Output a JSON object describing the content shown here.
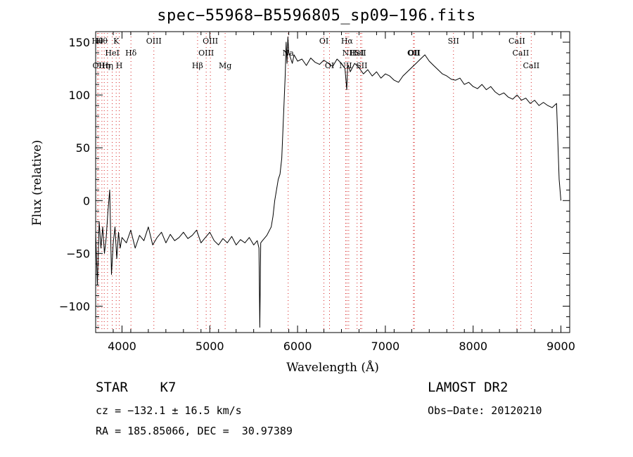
{
  "chart_data": {
    "type": "line",
    "title": "spec−55968−B5596805_sp09−196.fits",
    "xlabel": "Wavelength (Å)",
    "ylabel": "Flux (relative)",
    "xlim": [
      3700,
      9100
    ],
    "ylim": [
      -125,
      160
    ],
    "xticks": [
      4000,
      5000,
      6000,
      7000,
      8000,
      9000
    ],
    "yticks": [
      -100,
      -50,
      0,
      50,
      100,
      150
    ],
    "ytick_labels": [
      "−100",
      "−50",
      "0",
      "50",
      "100",
      "150"
    ],
    "grid": false,
    "series": [
      {
        "x": [
          3700,
          3720,
          3740,
          3760,
          3780,
          3800,
          3820,
          3840,
          3860,
          3880,
          3900,
          3920,
          3940,
          3960,
          3980,
          4000,
          4050,
          4100,
          4150,
          4200,
          4250,
          4300,
          4350,
          4400,
          4450,
          4500,
          4550,
          4600,
          4650,
          4700,
          4750,
          4800,
          4850,
          4900,
          4950,
          5000,
          5050,
          5100,
          5150,
          5200,
          5250,
          5300,
          5350,
          5400,
          5450,
          5500,
          5540,
          5560,
          5570,
          5580,
          5600,
          5650,
          5700,
          5720,
          5740,
          5760,
          5780,
          5800,
          5820,
          5840,
          5860,
          5870,
          5880,
          5890,
          5900,
          5920,
          5940,
          5960,
          6000,
          6050,
          6100,
          6150,
          6200,
          6250,
          6300,
          6350,
          6400,
          6450,
          6500,
          6540,
          6560,
          6570,
          6580,
          6600,
          6650,
          6700,
          6750,
          6800,
          6850,
          6900,
          6950,
          7000,
          7050,
          7100,
          7150,
          7200,
          7250,
          7300,
          7350,
          7400,
          7450,
          7500,
          7550,
          7600,
          7650,
          7700,
          7750,
          7800,
          7850,
          7900,
          7950,
          8000,
          8050,
          8100,
          8150,
          8200,
          8250,
          8300,
          8350,
          8400,
          8450,
          8500,
          8550,
          8600,
          8650,
          8700,
          8750,
          8800,
          8850,
          8900,
          8950,
          8980,
          9000
        ],
        "y": [
          -30,
          -80,
          -20,
          -45,
          -25,
          -50,
          -35,
          -10,
          10,
          -70,
          -40,
          -25,
          -55,
          -30,
          -45,
          -35,
          -40,
          -28,
          -45,
          -33,
          -38,
          -25,
          -42,
          -35,
          -30,
          -40,
          -32,
          -38,
          -35,
          -30,
          -36,
          -33,
          -28,
          -40,
          -35,
          -30,
          -38,
          -42,
          -36,
          -40,
          -34,
          -42,
          -37,
          -40,
          -35,
          -42,
          -38,
          -45,
          -120,
          -40,
          -38,
          -33,
          -25,
          -15,
          0,
          10,
          20,
          25,
          40,
          80,
          120,
          150,
          130,
          155,
          140,
          135,
          130,
          138,
          132,
          134,
          128,
          135,
          131,
          129,
          133,
          130,
          127,
          134,
          130,
          125,
          105,
          126,
          128,
          122,
          130,
          126,
          120,
          124,
          118,
          122,
          116,
          120,
          118,
          114,
          112,
          118,
          122,
          126,
          130,
          134,
          138,
          132,
          128,
          124,
          120,
          118,
          115,
          114,
          116,
          110,
          112,
          108,
          106,
          110,
          105,
          108,
          103,
          100,
          102,
          98,
          96,
          100,
          95,
          97,
          92,
          95,
          90,
          93,
          90,
          88,
          92,
          20,
          0
        ]
      }
    ],
    "lines": [
      {
        "wl": 3720,
        "label": "Hθ",
        "row": 1
      },
      {
        "wl": 3735,
        "label": "OII",
        "row": 3
      },
      {
        "wl": 3771,
        "label": "Hθ",
        "row": 1
      },
      {
        "wl": 3798,
        "label": "Hη",
        "row": 3
      },
      {
        "wl": 3835,
        "label": "Hη",
        "row": 3
      },
      {
        "wl": 3889,
        "label": "HeI",
        "row": 2
      },
      {
        "wl": 3934,
        "label": "K",
        "row": 1
      },
      {
        "wl": 3969,
        "label": "H",
        "row": 3
      },
      {
        "wl": 4102,
        "label": "Hδ",
        "row": 2
      },
      {
        "wl": 4363,
        "label": "OIII",
        "row": 1
      },
      {
        "wl": 4861,
        "label": "Hβ",
        "row": 3
      },
      {
        "wl": 4959,
        "label": "OIII",
        "row": 2
      },
      {
        "wl": 5007,
        "label": "OIII",
        "row": 1
      },
      {
        "wl": 5175,
        "label": "Mg",
        "row": 3
      },
      {
        "wl": 5893,
        "label": "Na",
        "row": 2
      },
      {
        "wl": 6300,
        "label": "OI",
        "row": 1
      },
      {
        "wl": 6364,
        "label": "OI",
        "row": 3
      },
      {
        "wl": 6548,
        "label": "NII",
        "row": 3
      },
      {
        "wl": 6563,
        "label": "Hα",
        "row": 1
      },
      {
        "wl": 6583,
        "label": "NII",
        "row": 2
      },
      {
        "wl": 6678,
        "label": "HeI",
        "row": 2
      },
      {
        "wl": 6717,
        "label": "SII",
        "row": 2
      },
      {
        "wl": 6731,
        "label": "SII",
        "row": 3
      },
      {
        "wl": 7320,
        "label": "OII",
        "row": 2
      },
      {
        "wl": 7330,
        "label": "OII",
        "row": 2
      },
      {
        "wl": 7776,
        "label": "SII",
        "row": 1
      },
      {
        "wl": 8498,
        "label": "CaII",
        "row": 1
      },
      {
        "wl": 8542,
        "label": "CaII",
        "row": 2
      },
      {
        "wl": 8662,
        "label": "CaII",
        "row": 3
      }
    ]
  },
  "info": {
    "object": "STAR    K7",
    "survey": "LAMOST DR2",
    "cz": "cz = −132.1 ± 16.5 km/s",
    "obsdate": "Obs−Date: 20120210",
    "radec": "RA = 185.85066, DEC =  30.97389"
  }
}
